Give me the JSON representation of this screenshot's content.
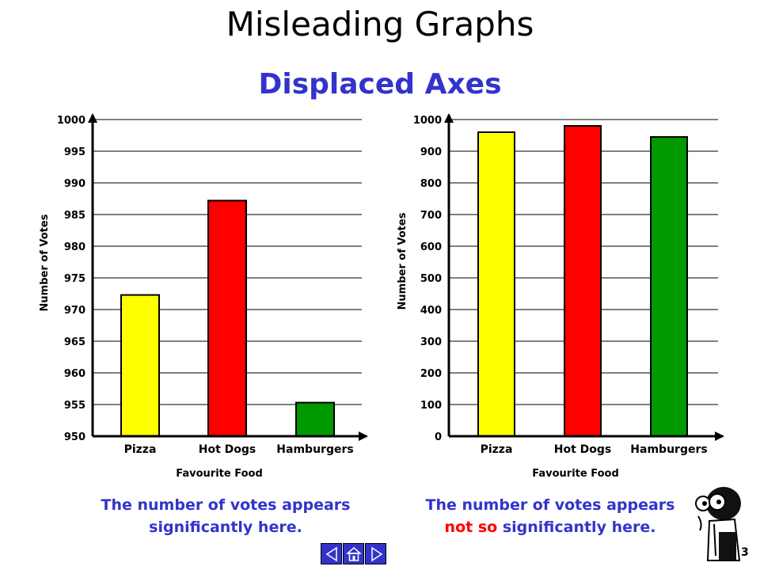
{
  "slide": {
    "title": "Misleading Graphs",
    "subtitle": "Displaced Axes",
    "page_number": "3"
  },
  "captions": {
    "left": "The number of votes appears significantly here.",
    "right_part1": "The number of votes appears",
    "right_not_so": "not so",
    "right_part2": "significantly here."
  },
  "nav": {
    "icons": [
      "prev-arrow-icon",
      "home-icon",
      "next-arrow-icon"
    ]
  },
  "mascot": {
    "icon": "cartoon-scientist-icon"
  },
  "chart_data": [
    {
      "type": "bar",
      "categories": [
        "Pizza",
        "Hot Dogs",
        "Hamburgers"
      ],
      "values": [
        972.3,
        987.2,
        955.3
      ],
      "colors": [
        "#ffff00",
        "#ff0000",
        "#009900"
      ],
      "xlabel": "Favourite Food",
      "ylabel": "Number of Votes",
      "ylim": [
        950,
        1000
      ],
      "yticks": [
        950,
        955,
        960,
        965,
        970,
        975,
        980,
        985,
        990,
        995,
        1000
      ],
      "grid": true
    },
    {
      "type": "bar",
      "categories": [
        "Pizza",
        "Hot Dogs",
        "Hamburgers"
      ],
      "values": [
        960,
        980,
        945
      ],
      "colors": [
        "#ffff00",
        "#ff0000",
        "#009900"
      ],
      "xlabel": "Favourite Food",
      "ylabel": "Number of Votes",
      "ylim": [
        0,
        1000
      ],
      "yticks": [
        0,
        100,
        200,
        300,
        400,
        500,
        600,
        700,
        800,
        900,
        1000
      ],
      "grid": true
    }
  ]
}
